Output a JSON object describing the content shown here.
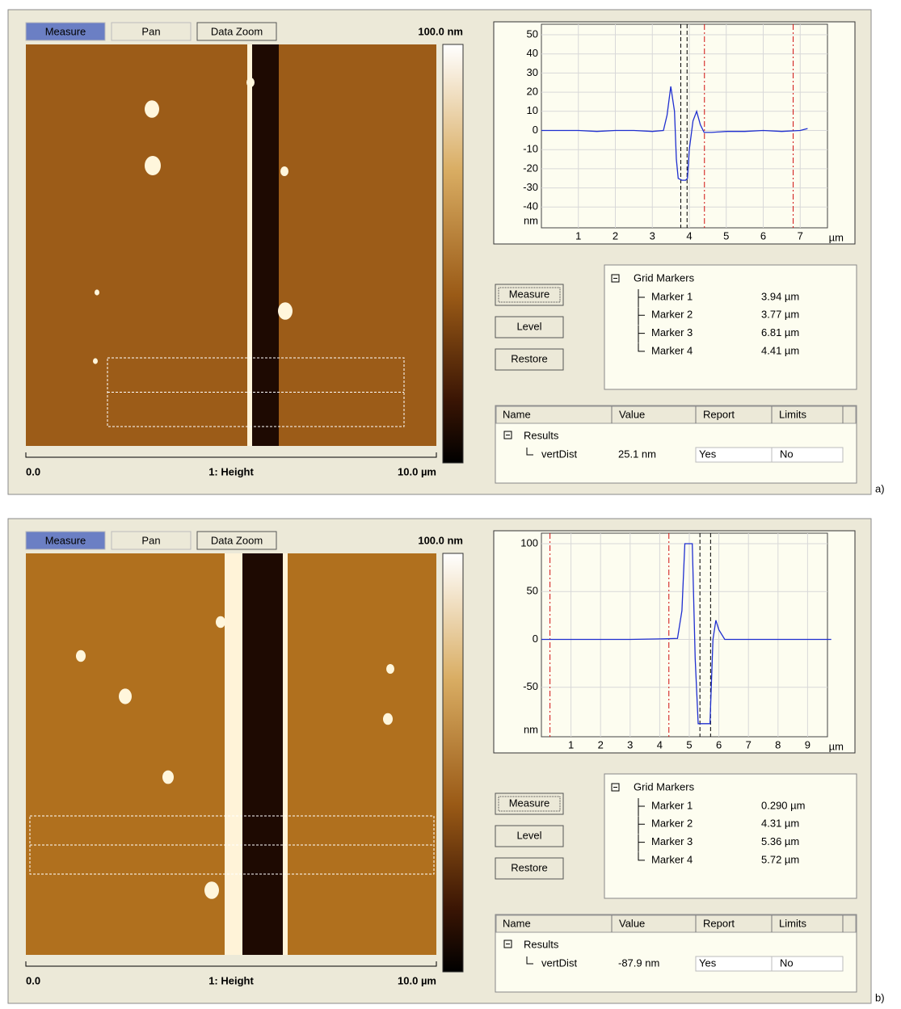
{
  "panels": [
    {
      "label": "a)",
      "toolbar": [
        "Measure",
        "Pan",
        "Data Zoom"
      ],
      "scale_label": "100.0 nm",
      "footer": {
        "left": "0.0",
        "center": "1: Height",
        "right": "10.0 µm"
      },
      "profile": {
        "type": "line",
        "color": "#1f2fd0",
        "y_unit": "nm",
        "x_unit": "µm",
        "xlim": [
          0,
          8
        ],
        "ylim": [
          -50,
          50
        ],
        "xticks": [
          1,
          2,
          3,
          4,
          5,
          6,
          7
        ],
        "yticks": [
          -40,
          -30,
          -20,
          -10,
          0,
          10,
          20,
          30,
          40,
          50
        ],
        "grid": true,
        "x": [
          0,
          0.5,
          1,
          1.5,
          2,
          2.5,
          3,
          3.3,
          3.4,
          3.5,
          3.6,
          3.65,
          3.7,
          3.8,
          3.9,
          3.95,
          4.0,
          4.1,
          4.2,
          4.3,
          4.4,
          4.6,
          5,
          5.5,
          6,
          6.5,
          7,
          7.2
        ],
        "values": [
          0,
          0,
          0,
          -0.5,
          0,
          0,
          -0.5,
          0,
          8,
          23,
          10,
          -15,
          -25,
          -26,
          -26,
          -25,
          -10,
          5,
          10,
          3,
          -1,
          -1,
          -0.5,
          -0.5,
          0,
          -0.5,
          0,
          1
        ]
      },
      "buttons": [
        "Measure",
        "Level",
        "Restore"
      ],
      "grid_markers": {
        "title": "Grid Markers",
        "items": [
          {
            "name": "Marker 1",
            "position": 3.94,
            "label": "3.94 µm",
            "color": "#000000"
          },
          {
            "name": "Marker 2",
            "position": 3.77,
            "label": "3.77 µm",
            "color": "#000000"
          },
          {
            "name": "Marker 3",
            "position": 6.81,
            "label": "6.81 µm",
            "color": "#d01010"
          },
          {
            "name": "Marker 4",
            "position": 4.41,
            "label": "4.41 µm",
            "color": "#d01010"
          }
        ]
      },
      "results": {
        "columns": [
          "Name",
          "Value",
          "Report",
          "Limits"
        ],
        "group": "Results",
        "rows": [
          [
            "vertDist",
            "25.1 nm",
            "Yes",
            "No"
          ]
        ]
      }
    },
    {
      "label": "b)",
      "toolbar": [
        "Measure",
        "Pan",
        "Data Zoom"
      ],
      "scale_label": "100.0 nm",
      "footer": {
        "left": "0.0",
        "center": "1: Height",
        "right": "10.0 µm"
      },
      "profile": {
        "type": "line",
        "color": "#1f2fd0",
        "y_unit": "nm",
        "x_unit": "µm",
        "xlim": [
          0,
          10
        ],
        "ylim": [
          -100,
          100
        ],
        "xticks": [
          1,
          2,
          3,
          4,
          5,
          6,
          7,
          8,
          9
        ],
        "yticks": [
          -50,
          0,
          50,
          100
        ],
        "grid": true,
        "x": [
          0,
          1,
          2,
          3,
          4,
          4.6,
          4.75,
          4.85,
          5.1,
          5.2,
          5.3,
          5.7,
          5.8,
          5.9,
          6.0,
          6.2,
          7,
          8,
          9,
          9.8
        ],
        "values": [
          0,
          0,
          0,
          0,
          0.5,
          1,
          30,
          100,
          100,
          -20,
          -88,
          -88,
          0,
          20,
          10,
          0,
          0,
          0,
          0,
          0
        ]
      },
      "buttons": [
        "Measure",
        "Level",
        "Restore"
      ],
      "grid_markers": {
        "title": "Grid Markers",
        "items": [
          {
            "name": "Marker 1",
            "position": 0.29,
            "label": "0.290 µm",
            "color": "#d01010"
          },
          {
            "name": "Marker 2",
            "position": 4.31,
            "label": "4.31 µm",
            "color": "#d01010"
          },
          {
            "name": "Marker 3",
            "position": 5.36,
            "label": "5.36 µm",
            "color": "#000000"
          },
          {
            "name": "Marker 4",
            "position": 5.72,
            "label": "5.72 µm",
            "color": "#000000"
          }
        ]
      },
      "results": {
        "columns": [
          "Name",
          "Value",
          "Report",
          "Limits"
        ],
        "group": "Results",
        "rows": [
          [
            "vertDist",
            "-87.9 nm",
            "Yes",
            "No"
          ]
        ]
      }
    }
  ]
}
